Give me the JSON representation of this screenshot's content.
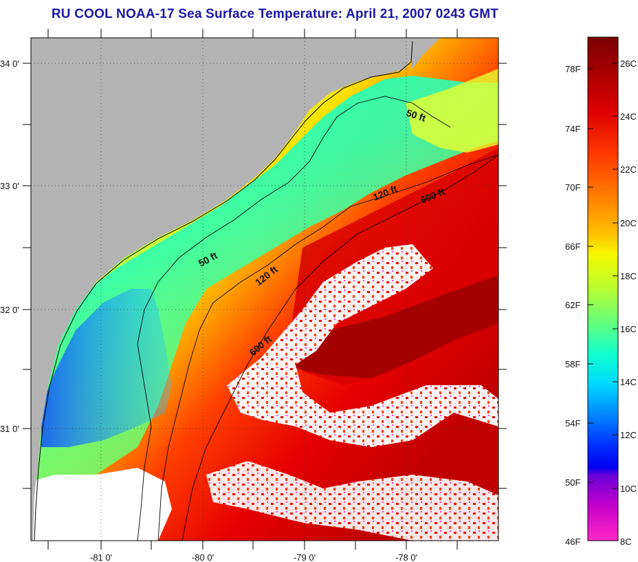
{
  "title": "RU COOL  NOAA-17  Sea Surface Temperature:  April 21, 2007 0243 GMT",
  "map": {
    "lon_labels": [
      "-81 0'",
      "-80 0'",
      "-79 0'",
      "-78 0'"
    ],
    "lat_labels": [
      "34 0'",
      "33 0'",
      "32 0'",
      "31 0'"
    ],
    "contour_labels": [
      "50 ft",
      "120 ft",
      "600 ft",
      "50 ft",
      "120 ft",
      "600 ft"
    ],
    "colors": {
      "land": "#b3b3b3",
      "cloud": "#ffffff",
      "coastline": "#000000"
    }
  },
  "colorbar": {
    "fahrenheit_labels": [
      "78F",
      "74F",
      "70F",
      "66F",
      "62F",
      "58F",
      "54F",
      "50F",
      "46F"
    ],
    "celsius_labels": [
      "26C",
      "24C",
      "22C",
      "20C",
      "18C",
      "16C",
      "14C",
      "12C",
      "10C",
      "8C"
    ],
    "gradient": [
      "#7a0000",
      "#b00000",
      "#e00000",
      "#ff3000",
      "#ff7000",
      "#ffa000",
      "#ffe000",
      "#f0ff00",
      "#b0ff30",
      "#50ff80",
      "#00ffd0",
      "#00d0ff",
      "#0080ff",
      "#0030ff",
      "#0000ff",
      "#6000e0",
      "#c000d0",
      "#ff20c0"
    ]
  }
}
